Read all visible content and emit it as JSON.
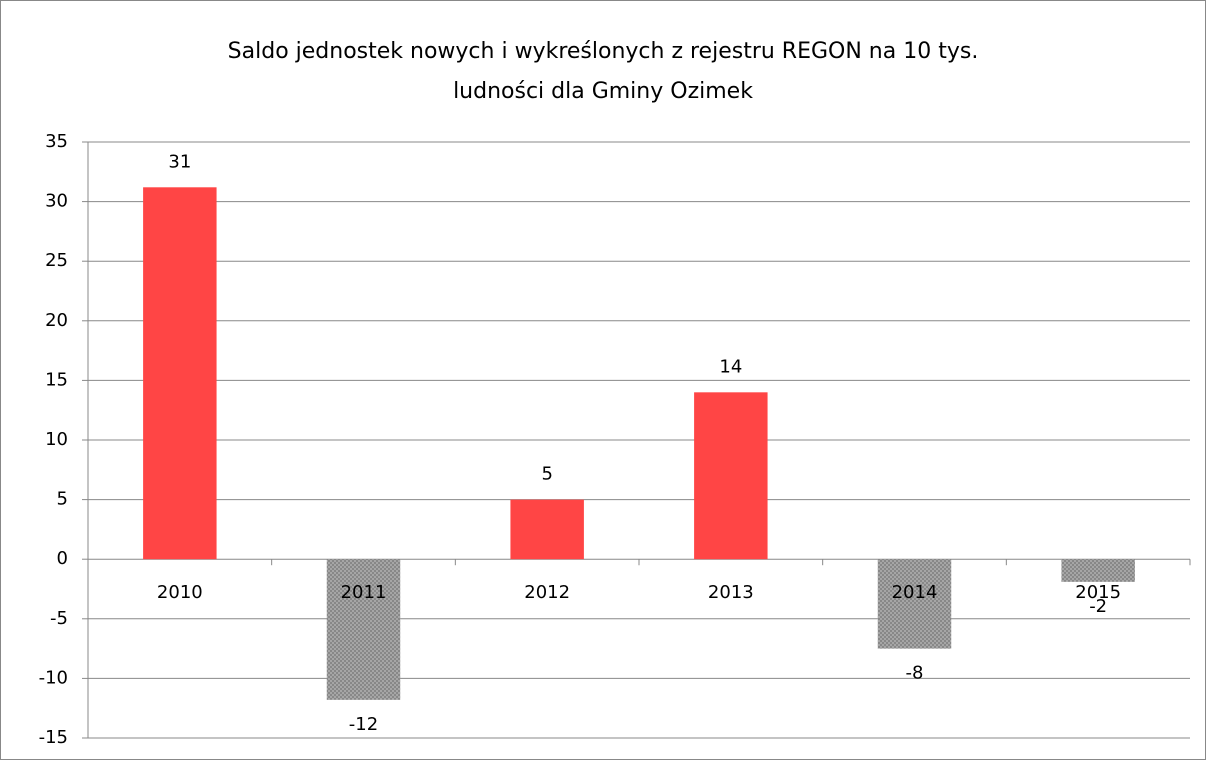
{
  "chart_data": {
    "type": "bar",
    "title": [
      "Saldo jednostek nowych i wykreślonych z rejestru REGON na 10 tys.",
      "ludności dla Gminy Ozimek"
    ],
    "categories": [
      "2010",
      "2011",
      "2012",
      "2013",
      "2014",
      "2015"
    ],
    "values": [
      31.2,
      -11.8,
      5,
      14,
      -7.5,
      -1.9
    ],
    "value_labels": [
      "31",
      "-12",
      "5",
      "14",
      "-8",
      "-2"
    ],
    "positive_color": "#ff4545",
    "negative_color": "#a6a6a6",
    "ylim": [
      -15,
      35
    ],
    "yticks": [
      -15,
      -10,
      -5,
      0,
      5,
      10,
      15,
      20,
      25,
      30,
      35
    ],
    "grid": true
  }
}
